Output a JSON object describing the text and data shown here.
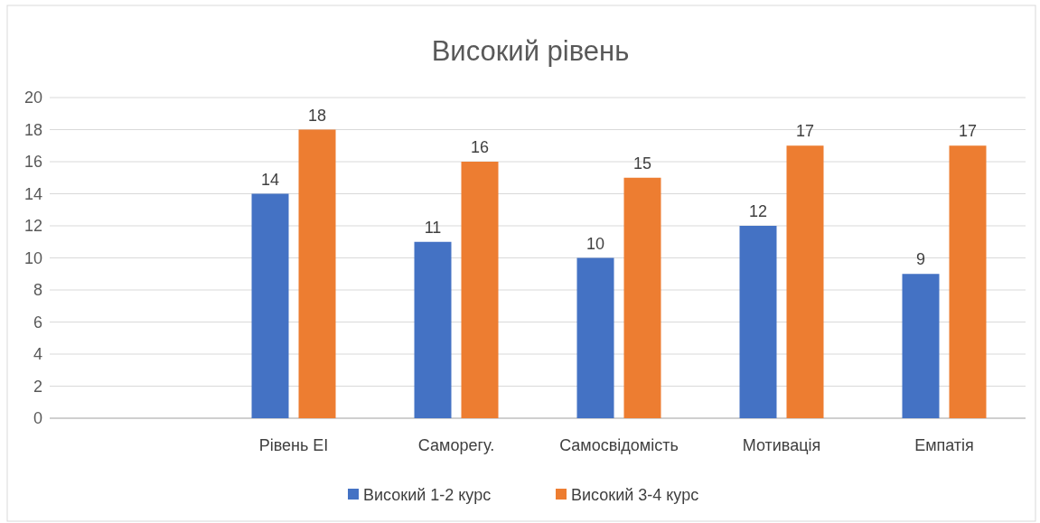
{
  "chart_data": {
    "type": "bar",
    "title": "Високий рівень",
    "categories": [
      null,
      "Рівень ЕІ",
      "Саморегу.",
      "Самосвідомість",
      "Мотивація",
      "Емпатія"
    ],
    "series": [
      {
        "name": "Високий 1-2 курс",
        "color": "#4472c4",
        "values": [
          null,
          14,
          11,
          10,
          12,
          9
        ]
      },
      {
        "name": "Високий 3-4 курс",
        "color": "#ed7d31",
        "values": [
          null,
          18,
          16,
          15,
          17,
          17
        ]
      }
    ],
    "ylim": [
      0,
      20
    ],
    "yticks": [
      0,
      2,
      4,
      6,
      8,
      10,
      12,
      14,
      16,
      18,
      20
    ],
    "grid": "y",
    "legend": "bottom",
    "data_labels": true
  }
}
